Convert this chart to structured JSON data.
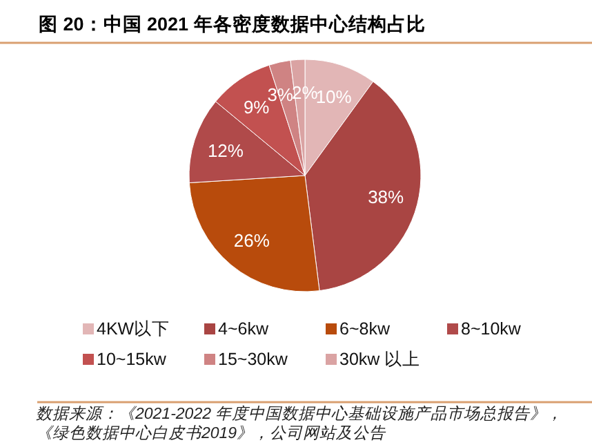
{
  "chart_data": {
    "type": "pie",
    "title": "图 20：中国 2021 年各密度数据中心结构占比",
    "categories": [
      "4KW以下",
      "4~6kw",
      "6~8kw",
      "8~10kw",
      "10~15kw",
      "15~30kw",
      "30kw 以上"
    ],
    "values": [
      10,
      38,
      26,
      12,
      9,
      3,
      2
    ],
    "value_labels": [
      "10%",
      "38%",
      "26%",
      "12%",
      "9%",
      "3%",
      "2%"
    ],
    "colors": [
      "#e2b6b6",
      "#a94543",
      "#b84b0c",
      "#b04a4a",
      "#c25150",
      "#cf8383",
      "#daa3a3"
    ],
    "legend": "bottom",
    "annotations": [
      "数据来源：《2021-2022 年度中国数据中心基础设施产品市场总报告》，《绿色数据中心白皮书2019》，公司网站及公告"
    ]
  }
}
